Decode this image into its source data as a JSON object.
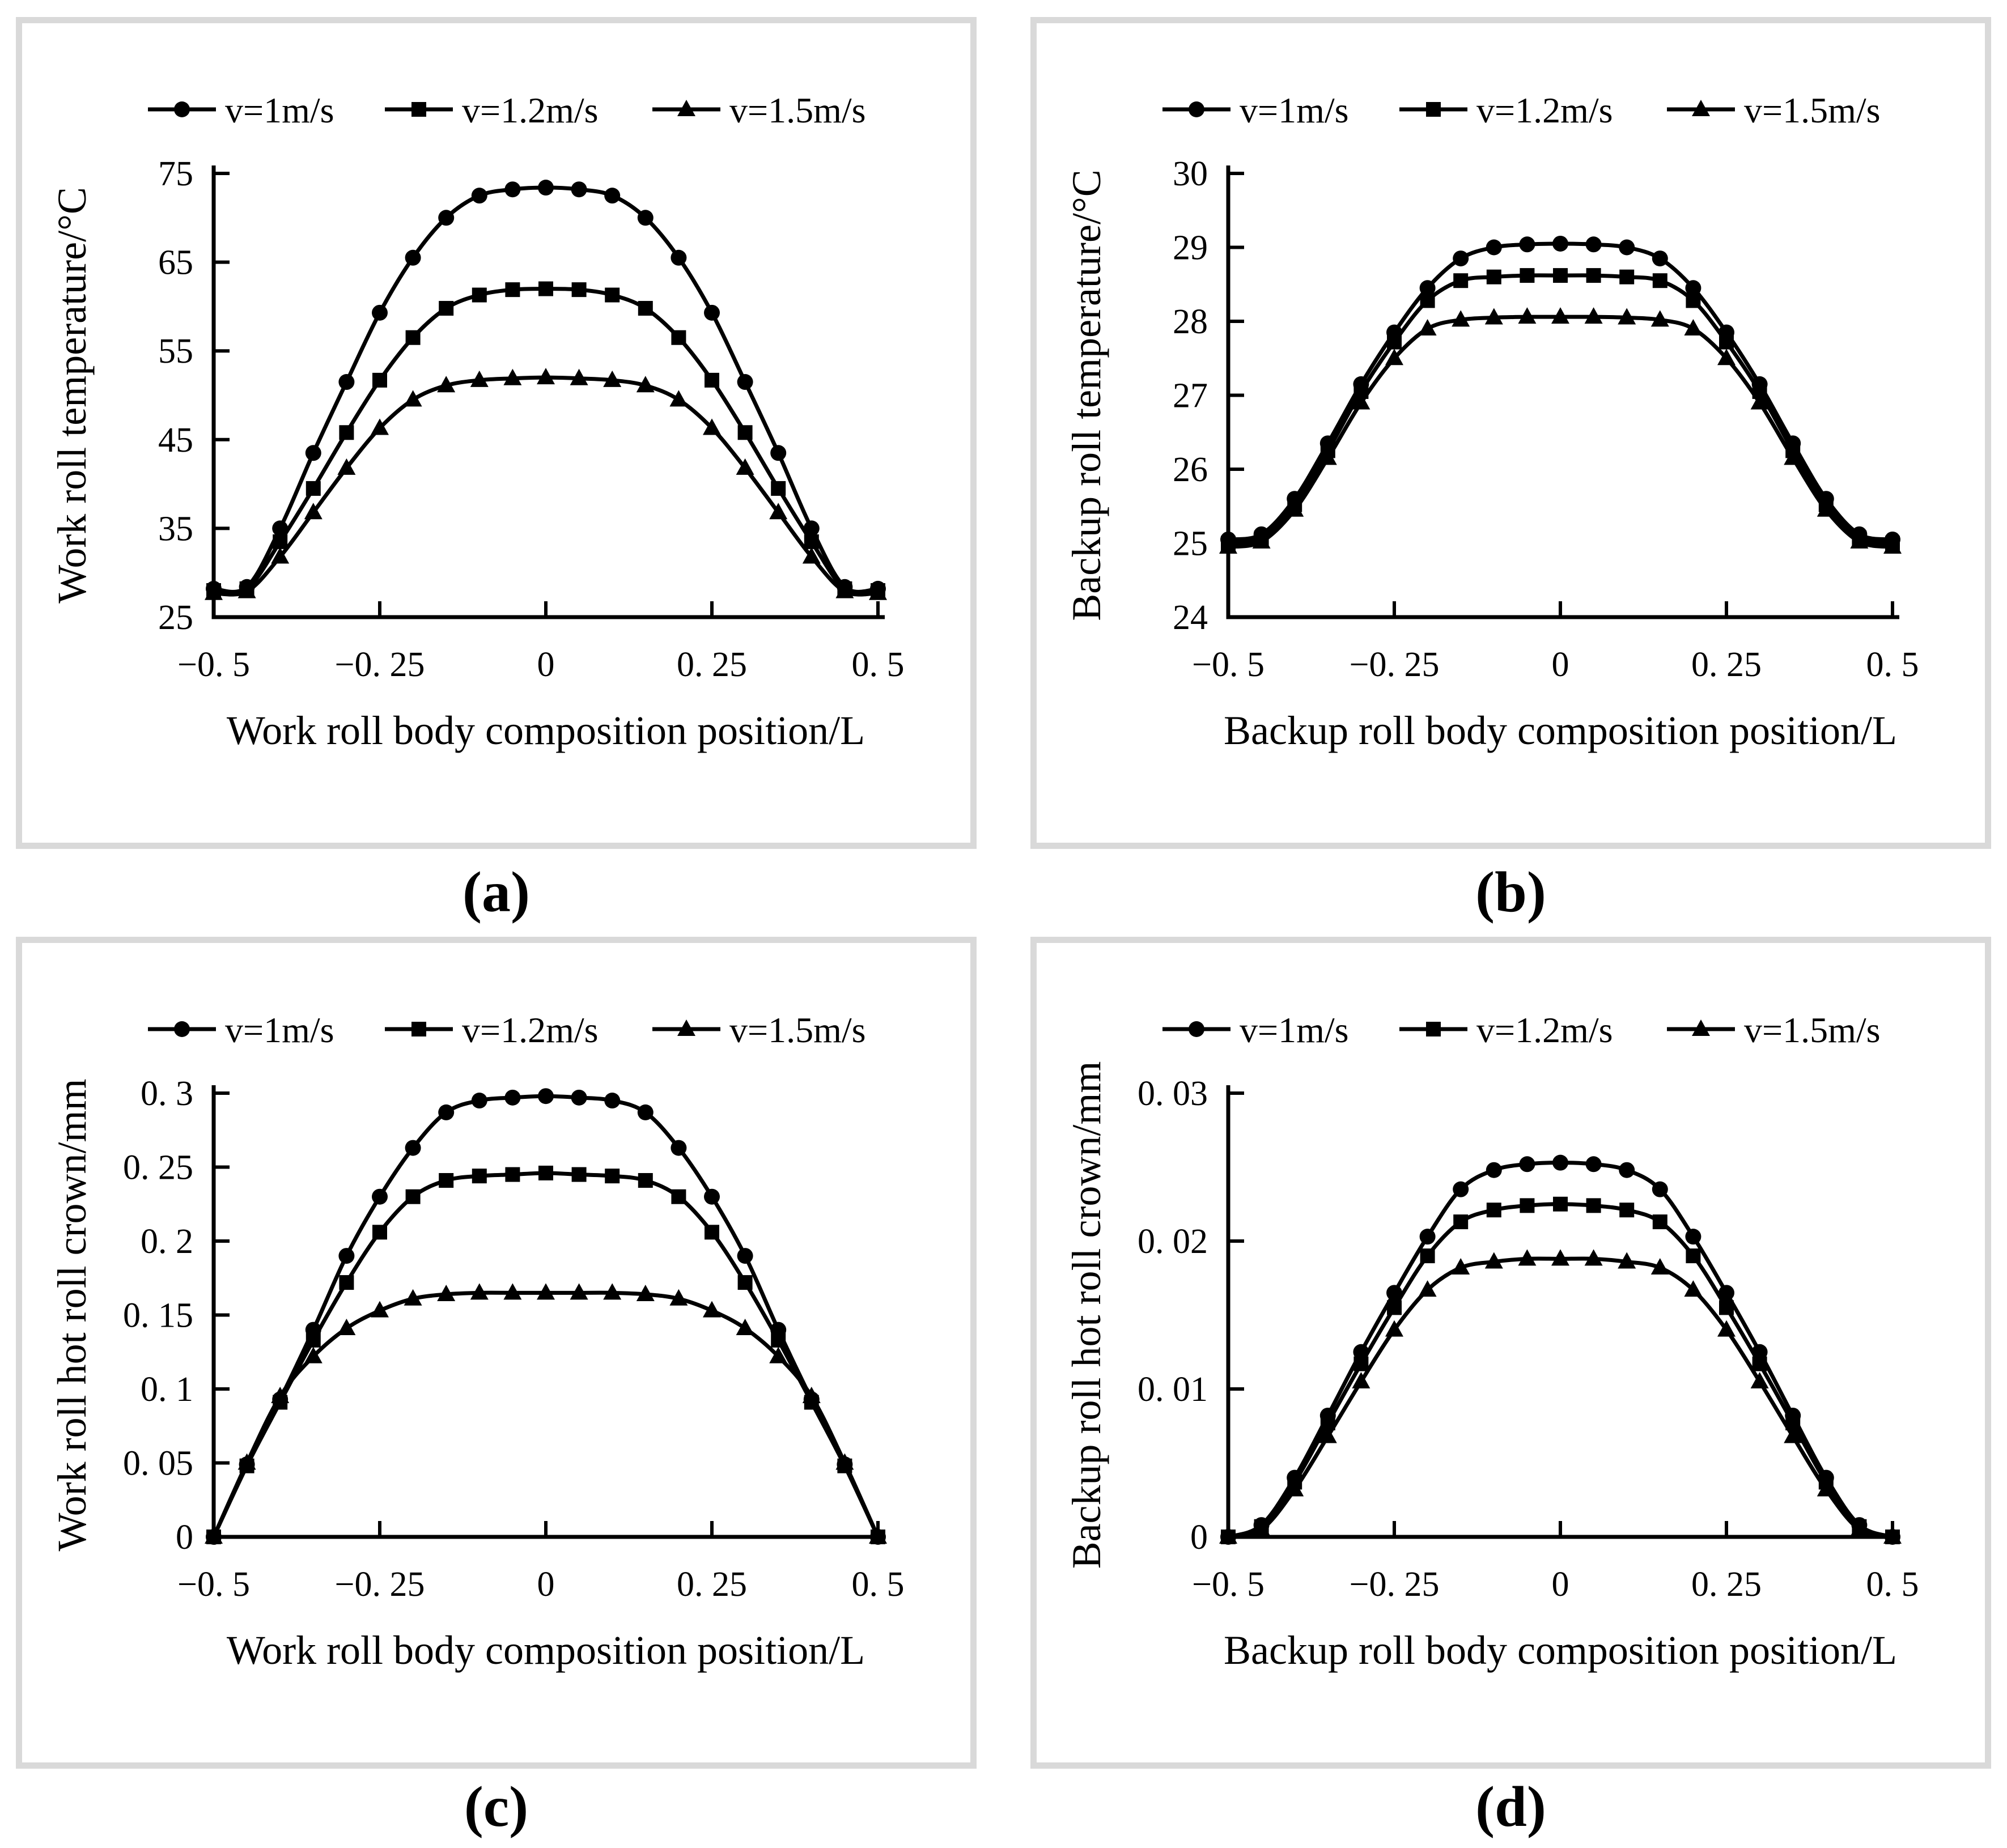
{
  "figure": {
    "captions": {
      "a": "(a)",
      "b": "(b)",
      "c": "(c)",
      "d": "(d)"
    }
  },
  "legend": {
    "items": [
      {
        "label": "v=1m/s",
        "marker": "circle"
      },
      {
        "label": "v=1.2m/s",
        "marker": "square"
      },
      {
        "label": "v=1.5m/s",
        "marker": "triangle"
      }
    ]
  },
  "colors": {
    "line": "#000000",
    "panel_border": "#d9d9d9",
    "background": "#ffffff"
  },
  "chart_data": [
    {
      "id": "a",
      "type": "line",
      "title": "",
      "xlabel": "Work roll body composition position/L",
      "ylabel": "Work roll temperature/°C",
      "xlim": [
        -0.5,
        0.5
      ],
      "ylim": [
        25,
        75
      ],
      "xticks": [
        -0.5,
        -0.25,
        0,
        0.25,
        0.5
      ],
      "xtick_labels": [
        "−0. 5",
        "−0. 25",
        "0",
        "0. 25",
        "0. 5"
      ],
      "yticks": [
        25,
        35,
        45,
        55,
        65,
        75
      ],
      "ytick_labels": [
        "25",
        "35",
        "45",
        "55",
        "65",
        "75"
      ],
      "grid": false,
      "legend_position": "top",
      "x": [
        -0.5,
        -0.45,
        -0.4,
        -0.35,
        -0.3,
        -0.25,
        -0.2,
        -0.15,
        -0.1,
        -0.05,
        0,
        0.05,
        0.1,
        0.15,
        0.2,
        0.25,
        0.3,
        0.35,
        0.4,
        0.45,
        0.5
      ],
      "series": [
        {
          "name": "v=1m/s",
          "marker": "circle",
          "values": [
            28.2,
            28.4,
            35,
            43.5,
            51.5,
            59.3,
            65.5,
            70,
            72.5,
            73.2,
            73.4,
            73.2,
            72.5,
            70,
            65.5,
            59.3,
            51.5,
            43.5,
            35,
            28.4,
            28.2
          ]
        },
        {
          "name": "v=1.2m/s",
          "marker": "square",
          "values": [
            28,
            28.2,
            33.5,
            39.5,
            45.8,
            51.7,
            56.5,
            59.8,
            61.3,
            61.9,
            62,
            61.9,
            61.3,
            59.8,
            56.5,
            51.7,
            45.8,
            39.5,
            33.5,
            28.2,
            28
          ]
        },
        {
          "name": "v=1.5m/s",
          "marker": "triangle",
          "values": [
            27.7,
            27.9,
            31.8,
            36.8,
            41.8,
            46.3,
            49.5,
            51.1,
            51.7,
            51.9,
            52,
            51.9,
            51.7,
            51.1,
            49.5,
            46.3,
            41.8,
            36.8,
            31.8,
            27.9,
            27.7
          ]
        }
      ]
    },
    {
      "id": "b",
      "type": "line",
      "title": "",
      "xlabel": "Backup roll body composition position/L",
      "ylabel": "Backup roll temperature/°C",
      "xlim": [
        -0.5,
        0.5
      ],
      "ylim": [
        24,
        30
      ],
      "xticks": [
        -0.5,
        -0.25,
        0,
        0.25,
        0.5
      ],
      "xtick_labels": [
        "−0. 5",
        "−0. 25",
        "0",
        "0. 25",
        "0. 5"
      ],
      "yticks": [
        24,
        25,
        26,
        27,
        28,
        29,
        30
      ],
      "ytick_labels": [
        "24",
        "25",
        "26",
        "27",
        "28",
        "29",
        "30"
      ],
      "grid": false,
      "legend_position": "top",
      "x": [
        -0.5,
        -0.45,
        -0.4,
        -0.35,
        -0.3,
        -0.25,
        -0.2,
        -0.15,
        -0.1,
        -0.05,
        0,
        0.05,
        0.1,
        0.15,
        0.2,
        0.25,
        0.3,
        0.35,
        0.4,
        0.45,
        0.5
      ],
      "series": [
        {
          "name": "v=1m/s",
          "marker": "circle",
          "values": [
            25.05,
            25.12,
            25.6,
            26.35,
            27.15,
            27.85,
            28.45,
            28.85,
            29,
            29.04,
            29.05,
            29.04,
            29,
            28.85,
            28.45,
            27.85,
            27.15,
            26.35,
            25.6,
            25.12,
            25.05
          ]
        },
        {
          "name": "v=1.2m/s",
          "marker": "square",
          "values": [
            25,
            25.07,
            25.52,
            26.25,
            27.05,
            27.72,
            28.28,
            28.55,
            28.6,
            28.62,
            28.62,
            28.62,
            28.6,
            28.55,
            28.28,
            27.72,
            27.05,
            26.25,
            25.52,
            25.07,
            25
          ]
        },
        {
          "name": "v=1.5m/s",
          "marker": "triangle",
          "values": [
            24.95,
            25.02,
            25.45,
            26.15,
            26.9,
            27.5,
            27.9,
            28.02,
            28.05,
            28.06,
            28.06,
            28.06,
            28.05,
            28.02,
            27.9,
            27.5,
            26.9,
            26.15,
            25.45,
            25.02,
            24.95
          ]
        }
      ]
    },
    {
      "id": "c",
      "type": "line",
      "title": "",
      "xlabel": "Work roll body composition position/L",
      "ylabel": "Work roll hot roll crown/mm",
      "xlim": [
        -0.5,
        0.5
      ],
      "ylim": [
        0,
        0.3
      ],
      "xticks": [
        -0.5,
        -0.25,
        0,
        0.25,
        0.5
      ],
      "xtick_labels": [
        "−0. 5",
        "−0. 25",
        "0",
        "0. 25",
        "0. 5"
      ],
      "yticks": [
        0,
        0.05,
        0.1,
        0.15,
        0.2,
        0.25,
        0.3
      ],
      "ytick_labels": [
        "0",
        "0. 05",
        "0. 1",
        "0. 15",
        "0. 2",
        "0. 25",
        "0. 3"
      ],
      "grid": false,
      "legend_position": "top",
      "x": [
        -0.5,
        -0.45,
        -0.4,
        -0.35,
        -0.3,
        -0.25,
        -0.2,
        -0.15,
        -0.1,
        -0.05,
        0,
        0.05,
        0.1,
        0.15,
        0.2,
        0.25,
        0.3,
        0.35,
        0.4,
        0.45,
        0.5
      ],
      "series": [
        {
          "name": "v=1m/s",
          "marker": "circle",
          "values": [
            0,
            0.049,
            0.093,
            0.14,
            0.19,
            0.23,
            0.263,
            0.287,
            0.295,
            0.297,
            0.298,
            0.297,
            0.295,
            0.287,
            0.263,
            0.23,
            0.19,
            0.14,
            0.093,
            0.049,
            0
          ]
        },
        {
          "name": "v=1.2m/s",
          "marker": "square",
          "values": [
            0,
            0.048,
            0.091,
            0.133,
            0.172,
            0.206,
            0.23,
            0.241,
            0.244,
            0.245,
            0.246,
            0.245,
            0.244,
            0.241,
            0.23,
            0.206,
            0.172,
            0.133,
            0.091,
            0.048,
            0
          ]
        },
        {
          "name": "v=1.5m/s",
          "marker": "triangle",
          "values": [
            0,
            0.05,
            0.095,
            0.122,
            0.141,
            0.153,
            0.161,
            0.164,
            0.165,
            0.165,
            0.165,
            0.165,
            0.165,
            0.164,
            0.161,
            0.153,
            0.141,
            0.122,
            0.095,
            0.05,
            0
          ]
        }
      ]
    },
    {
      "id": "d",
      "type": "line",
      "title": "",
      "xlabel": "Backup roll body composition position/L",
      "ylabel": "Backup roll hot roll crown/mm",
      "xlim": [
        -0.5,
        0.5
      ],
      "ylim": [
        0,
        0.03
      ],
      "xticks": [
        -0.5,
        -0.25,
        0,
        0.25,
        0.5
      ],
      "xtick_labels": [
        "−0. 5",
        "−0. 25",
        "0",
        "0. 25",
        "0. 5"
      ],
      "yticks": [
        0,
        0.01,
        0.02,
        0.03
      ],
      "ytick_labels": [
        "0",
        "0. 01",
        "0. 02",
        "0. 03"
      ],
      "grid": false,
      "legend_position": "top",
      "x": [
        -0.5,
        -0.45,
        -0.4,
        -0.35,
        -0.3,
        -0.25,
        -0.2,
        -0.15,
        -0.1,
        -0.05,
        0,
        0.05,
        0.1,
        0.15,
        0.2,
        0.25,
        0.3,
        0.35,
        0.4,
        0.45,
        0.5
      ],
      "series": [
        {
          "name": "v=1m/s",
          "marker": "circle",
          "values": [
            0,
            0.0008,
            0.004,
            0.0082,
            0.0125,
            0.0165,
            0.0203,
            0.0235,
            0.0248,
            0.0252,
            0.0253,
            0.0252,
            0.0248,
            0.0235,
            0.0203,
            0.0165,
            0.0125,
            0.0082,
            0.004,
            0.0008,
            0
          ]
        },
        {
          "name": "v=1.2m/s",
          "marker": "square",
          "values": [
            0,
            0.0007,
            0.0037,
            0.0077,
            0.0117,
            0.0155,
            0.019,
            0.0213,
            0.0221,
            0.0224,
            0.0225,
            0.0224,
            0.0221,
            0.0213,
            0.019,
            0.0155,
            0.0117,
            0.0077,
            0.0037,
            0.0007,
            0
          ]
        },
        {
          "name": "v=1.5m/s",
          "marker": "triangle",
          "values": [
            0,
            0.0005,
            0.0032,
            0.0068,
            0.0105,
            0.014,
            0.0167,
            0.0182,
            0.0186,
            0.0188,
            0.0188,
            0.0188,
            0.0186,
            0.0182,
            0.0167,
            0.014,
            0.0105,
            0.0068,
            0.0032,
            0.0005,
            0
          ]
        }
      ]
    }
  ]
}
